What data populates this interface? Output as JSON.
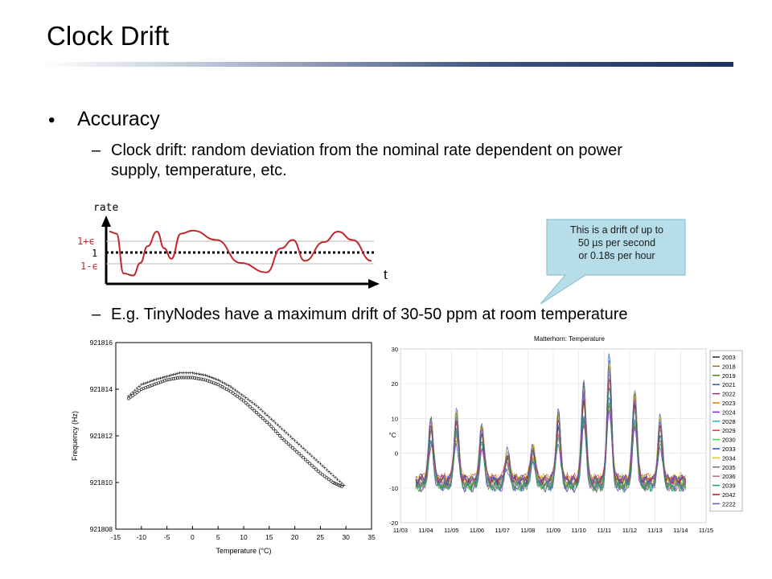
{
  "slide": {
    "title": "Clock Drift",
    "bullet": {
      "marker": "•",
      "text": "Accuracy"
    },
    "sub_items": [
      {
        "marker": "–",
        "line1": "Clock drift: random deviation from the nominal rate dependent on power",
        "line2": "supply, temperature, etc."
      },
      {
        "marker": "–",
        "line1": "E.g. TinyNodes have a maximum drift of 30-50 ppm at room temperature"
      }
    ],
    "callout": {
      "lines": [
        "This is a drift of up to",
        "50 µs per second",
        "or 0.18s per hour"
      ]
    },
    "colors": {
      "title_bar": "#1f2f5f",
      "accent_red": "#c0282d",
      "callout_fill": "#b7dde8",
      "callout_border": "#8fc3d3"
    }
  },
  "chart_data": [
    {
      "type": "line",
      "ylabel": "rate",
      "xlabel": "t",
      "ticks": [
        "1+ϵ",
        "1",
        "1-ϵ"
      ],
      "series": [
        {
          "values": [
            [
              0,
              1.0
            ],
            [
              0.3,
              0.9
            ],
            [
              0.6,
              -1.0
            ],
            [
              1.0,
              -1.1
            ],
            [
              1.3,
              -0.5
            ],
            [
              1.6,
              0.3
            ],
            [
              2.0,
              1.0
            ],
            [
              2.3,
              0.2
            ],
            [
              2.6,
              -0.3
            ],
            [
              3.0,
              0.9
            ],
            [
              3.5,
              1.05
            ],
            [
              4.5,
              0.6
            ],
            [
              5.5,
              -0.5
            ],
            [
              6.6,
              -0.95
            ],
            [
              7.2,
              0.2
            ],
            [
              7.7,
              0.6
            ],
            [
              8.2,
              -0.4
            ],
            [
              9.0,
              0.5
            ],
            [
              9.6,
              1.0
            ],
            [
              10.2,
              0.6
            ],
            [
              11.0,
              -0.4
            ]
          ]
        }
      ]
    },
    {
      "type": "scatter",
      "xlabel": "Temperature (°C)",
      "ylabel": "Frequency (Hz)",
      "xticks": [
        "-15",
        "-10",
        "-5",
        "0",
        "5",
        "10",
        "15",
        "20",
        "25",
        "30",
        "35"
      ],
      "yticks": [
        "921816",
        "921814",
        "921812",
        "921810",
        "921808"
      ],
      "xlim": [
        -15,
        35
      ],
      "ylim": [
        921808,
        921816
      ],
      "series": [
        {
          "values": [
            [
              -12.5,
              921813.6
            ],
            [
              -10,
              921814.0
            ],
            [
              -7.5,
              921814.2
            ],
            [
              -5,
              921814.4
            ],
            [
              -2.5,
              921814.5
            ],
            [
              0,
              921814.5
            ],
            [
              2.5,
              921814.4
            ],
            [
              5,
              921814.2
            ],
            [
              7.5,
              921813.9
            ],
            [
              10,
              921813.5
            ],
            [
              12.5,
              921813.0
            ],
            [
              15,
              921812.5
            ],
            [
              17.5,
              921811.9
            ],
            [
              20,
              921811.4
            ],
            [
              22.5,
              921810.9
            ],
            [
              25,
              921810.4
            ],
            [
              27.5,
              921810.0
            ],
            [
              29.5,
              921809.8
            ]
          ]
        },
        {
          "values": [
            [
              -12.5,
              921813.7
            ],
            [
              -10,
              921814.2
            ],
            [
              -7.5,
              921814.4
            ],
            [
              -5,
              921814.55
            ],
            [
              -2.5,
              921814.7
            ],
            [
              0,
              921814.7
            ],
            [
              2.5,
              921814.6
            ],
            [
              5,
              921814.4
            ],
            [
              7.5,
              921814.1
            ],
            [
              10,
              921813.7
            ],
            [
              12.5,
              921813.3
            ],
            [
              15,
              921812.8
            ],
            [
              17.5,
              921812.3
            ],
            [
              20,
              921811.8
            ],
            [
              22.5,
              921811.3
            ],
            [
              25,
              921810.8
            ],
            [
              27.5,
              921810.3
            ],
            [
              30,
              921809.8
            ]
          ]
        }
      ]
    },
    {
      "type": "line",
      "title": "Matterhorn: Temperature",
      "ylabel": "°C",
      "xticks": [
        "11/03",
        "11/04",
        "11/05",
        "11/06",
        "11/07",
        "11/08",
        "11/09",
        "11/10",
        "11/11",
        "11/12",
        "11/13",
        "11/14",
        "11/15"
      ],
      "yticks": [
        "30",
        "20",
        "10",
        "0",
        "-10",
        "-20"
      ],
      "ylim": [
        -20,
        30
      ],
      "legend": [
        "2003",
        "2018",
        "2019",
        "2021",
        "2022",
        "2023",
        "2024",
        "2028",
        "2029",
        "2030",
        "2033",
        "2034",
        "2035",
        "2036",
        "2039",
        "2042",
        "2222"
      ],
      "legend_colors": [
        "#2a2a2a",
        "#8a6d2a",
        "#4f7d2a",
        "#2a5f9a",
        "#9a2a6f",
        "#d97a1f",
        "#7a2ad9",
        "#2ab3b3",
        "#d93a3a",
        "#3ad93a",
        "#1f4fd9",
        "#d9c41f",
        "#6f6f6f",
        "#b36b9a",
        "#1f9a5f",
        "#9a1f1f",
        "#5f5fb3"
      ],
      "series_shape": {
        "base": -8.5,
        "peaks": [
          {
            "day": 1.2,
            "value": 10
          },
          {
            "day": 2.2,
            "value": 12
          },
          {
            "day": 3.2,
            "value": 8
          },
          {
            "day": 4.2,
            "value": 0
          },
          {
            "day": 5.2,
            "value": 2
          },
          {
            "day": 6.2,
            "value": 12
          },
          {
            "day": 7.2,
            "value": 20
          },
          {
            "day": 8.2,
            "value": 27
          },
          {
            "day": 9.2,
            "value": 18
          },
          {
            "day": 10.2,
            "value": 10
          }
        ]
      }
    }
  ]
}
